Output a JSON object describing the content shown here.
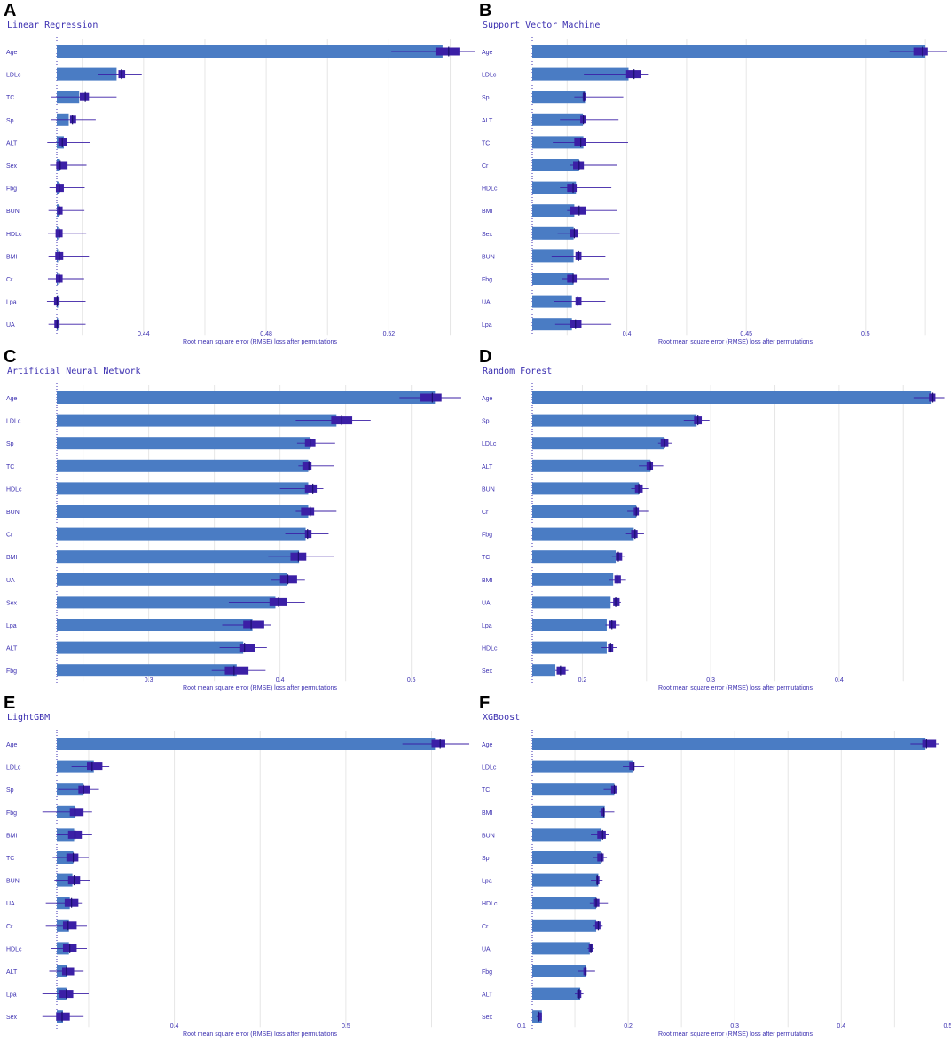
{
  "colors": {
    "bar": "#4a7cc4",
    "box": "#3b1fa6",
    "whisker": "#3b1fa6",
    "grid": "#e6e6e6",
    "baseline": "#3b2fb0"
  },
  "chart_data": [
    {
      "letter": "A",
      "title": "Linear Regression",
      "type": "bar",
      "xlabel": "Root mean square error (RMSE) loss after permutations",
      "baseline": 0.4117,
      "xlim": [
        0.4117,
        0.5465
      ],
      "ticks": [
        0.44,
        0.48,
        0.52
      ],
      "categories": [
        "Age",
        "LDLc",
        "TC",
        "Sp",
        "ALT",
        "Sex",
        "Fbg",
        "BUN",
        "HDLc",
        "BMI",
        "Cr",
        "Lpa",
        "UA"
      ],
      "values": [
        0.5375,
        0.4312,
        0.419,
        0.4156,
        0.414,
        0.4127,
        0.4124,
        0.4123,
        0.4122,
        0.4121,
        0.412,
        0.4119,
        0.4118
      ],
      "box_low": [
        0.5352,
        0.4318,
        0.4192,
        0.416,
        0.4122,
        0.4115,
        0.4114,
        0.4118,
        0.4113,
        0.4112,
        0.4114,
        0.4108,
        0.4109
      ],
      "box_high": [
        0.543,
        0.434,
        0.4222,
        0.418,
        0.415,
        0.4152,
        0.414,
        0.4136,
        0.4136,
        0.4138,
        0.4136,
        0.4126,
        0.4126
      ],
      "median": [
        0.5395,
        0.4328,
        0.421,
        0.4168,
        0.4135,
        0.4128,
        0.4125,
        0.4125,
        0.4125,
        0.4125,
        0.4125,
        0.4118,
        0.4118
      ],
      "wlo": [
        0.5208,
        0.4252,
        0.4097,
        0.4097,
        0.4086,
        0.4095,
        0.4093,
        0.409,
        0.4088,
        0.409,
        0.4088,
        0.4085,
        0.409
      ],
      "whi": [
        0.5494,
        0.4394,
        0.4312,
        0.4244,
        0.4224,
        0.4214,
        0.4208,
        0.4207,
        0.4213,
        0.4222,
        0.4206,
        0.4211,
        0.4211
      ]
    },
    {
      "letter": "B",
      "title": "Support Vector Machine",
      "type": "bar",
      "xlabel": "Root mean square error (RMSE) loss after permutations",
      "baseline": 0.3604,
      "xlim": [
        0.3604,
        0.5335
      ],
      "ticks": [
        0.4,
        0.45,
        0.5
      ],
      "categories": [
        "Age",
        "LDLc",
        "Sp",
        "ALT",
        "TC",
        "Cr",
        "HDLc",
        "BMI",
        "Sex",
        "BUN",
        "Fbg",
        "UA",
        "Lpa"
      ],
      "values": [
        0.525,
        0.4007,
        0.3825,
        0.3816,
        0.3818,
        0.38,
        0.3787,
        0.378,
        0.3777,
        0.3777,
        0.3777,
        0.377,
        0.377
      ],
      "box_low": [
        0.52,
        0.3997,
        0.3815,
        0.3805,
        0.378,
        0.3775,
        0.375,
        0.376,
        0.376,
        0.3785,
        0.375,
        0.3785,
        0.376
      ],
      "box_high": [
        0.526,
        0.406,
        0.383,
        0.383,
        0.383,
        0.382,
        0.379,
        0.383,
        0.3795,
        0.381,
        0.379,
        0.381,
        0.381
      ],
      "median": [
        0.5238,
        0.403,
        0.382,
        0.3818,
        0.3807,
        0.38,
        0.3775,
        0.38,
        0.378,
        0.3798,
        0.3775,
        0.3795,
        0.3785
      ],
      "wlo": [
        0.51,
        0.382,
        0.378,
        0.372,
        0.369,
        0.3762,
        0.372,
        0.375,
        0.371,
        0.3685,
        0.373,
        0.3695,
        0.37
      ],
      "whi": [
        0.534,
        0.4092,
        0.3985,
        0.3965,
        0.4005,
        0.396,
        0.3935,
        0.396,
        0.397,
        0.391,
        0.3925,
        0.391,
        0.3935
      ]
    },
    {
      "letter": "C",
      "title": "Artificial Neural Network",
      "type": "bar",
      "xlabel": "Root mean square error (RMSE) loss after permutations",
      "baseline": 0.23,
      "xlim": [
        0.23,
        0.5448
      ],
      "ticks": [
        0.3,
        0.4,
        0.5
      ],
      "categories": [
        "Age",
        "LDLc",
        "Sp",
        "TC",
        "HDLc",
        "BUN",
        "Cr",
        "BMI",
        "UA",
        "Sex",
        "Lpa",
        "ALT",
        "Fbg"
      ],
      "values": [
        0.518,
        0.443,
        0.423,
        0.4215,
        0.4215,
        0.4215,
        0.4195,
        0.4145,
        0.4055,
        0.3965,
        0.379,
        0.372,
        0.367
      ],
      "box_low": [
        0.507,
        0.439,
        0.419,
        0.417,
        0.419,
        0.416,
        0.419,
        0.408,
        0.4,
        0.392,
        0.372,
        0.369,
        0.358
      ],
      "box_high": [
        0.523,
        0.455,
        0.427,
        0.424,
        0.428,
        0.426,
        0.424,
        0.42,
        0.413,
        0.405,
        0.388,
        0.381,
        0.376
      ],
      "median": [
        0.516,
        0.447,
        0.423,
        0.422,
        0.425,
        0.423,
        0.421,
        0.414,
        0.406,
        0.399,
        0.378,
        0.373,
        0.365
      ],
      "wlo": [
        0.491,
        0.412,
        0.413,
        0.414,
        0.4,
        0.412,
        0.404,
        0.391,
        0.393,
        0.361,
        0.356,
        0.354,
        0.348
      ],
      "whi": [
        0.538,
        0.469,
        0.442,
        0.441,
        0.433,
        0.443,
        0.437,
        0.441,
        0.419,
        0.419,
        0.393,
        0.39,
        0.389
      ]
    },
    {
      "letter": "D",
      "title": "Random Forest",
      "type": "bar",
      "xlabel": "Root mean square error (RMSE) loss after permutations",
      "baseline": 0.161,
      "xlim": [
        0.161,
        0.483
      ],
      "ticks": [
        0.2,
        0.3,
        0.4
      ],
      "categories": [
        "Age",
        "Sp",
        "LDLc",
        "ALT",
        "BUN",
        "Cr",
        "Fbg",
        "TC",
        "BMI",
        "UA",
        "Lpa",
        "HDLc",
        "Sex"
      ],
      "values": [
        0.472,
        0.289,
        0.264,
        0.253,
        0.244,
        0.242,
        0.24,
        0.226,
        0.224,
        0.222,
        0.219,
        0.219,
        0.179
      ],
      "box_low": [
        0.47,
        0.287,
        0.261,
        0.25,
        0.241,
        0.24,
        0.238,
        0.226,
        0.225,
        0.224,
        0.221,
        0.22,
        0.18
      ],
      "box_high": [
        0.475,
        0.293,
        0.267,
        0.255,
        0.247,
        0.244,
        0.243,
        0.231,
        0.23,
        0.229,
        0.226,
        0.224,
        0.187
      ],
      "median": [
        0.473,
        0.29,
        0.264,
        0.253,
        0.244,
        0.242,
        0.241,
        0.228,
        0.227,
        0.226,
        0.223,
        0.222,
        0.183
      ],
      "wlo": [
        0.458,
        0.279,
        0.259,
        0.244,
        0.238,
        0.235,
        0.234,
        0.223,
        0.221,
        0.222,
        0.218,
        0.215,
        0.179
      ],
      "whi": [
        0.482,
        0.299,
        0.27,
        0.263,
        0.252,
        0.252,
        0.248,
        0.233,
        0.234,
        0.23,
        0.229,
        0.227,
        0.189
      ]
    },
    {
      "letter": "E",
      "title": "LightGBM",
      "type": "bar",
      "xlabel": "Root mean square error (RMSE) loss after permutations",
      "baseline": 0.3314,
      "xlim": [
        0.3314,
        0.5725
      ],
      "ticks": [
        0.4,
        0.5
      ],
      "categories": [
        "Age",
        "LDLc",
        "Sp",
        "Fbg",
        "BMI",
        "TC",
        "BUN",
        "UA",
        "Cr",
        "HDLc",
        "ALT",
        "Lpa",
        "Sex"
      ],
      "values": [
        0.552,
        0.353,
        0.347,
        0.342,
        0.3415,
        0.341,
        0.3405,
        0.339,
        0.3385,
        0.3385,
        0.3375,
        0.337,
        0.335
      ],
      "box_low": [
        0.55,
        0.349,
        0.344,
        0.339,
        0.338,
        0.337,
        0.338,
        0.336,
        0.335,
        0.335,
        0.3345,
        0.333,
        0.331
      ],
      "box_high": [
        0.558,
        0.358,
        0.351,
        0.347,
        0.346,
        0.344,
        0.345,
        0.344,
        0.343,
        0.343,
        0.3415,
        0.341,
        0.339
      ],
      "median": [
        0.555,
        0.352,
        0.347,
        0.342,
        0.342,
        0.341,
        0.3415,
        0.34,
        0.338,
        0.339,
        0.337,
        0.337,
        0.3345
      ],
      "wlo": [
        0.533,
        0.34,
        0.332,
        0.323,
        0.331,
        0.329,
        0.33,
        0.325,
        0.325,
        0.328,
        0.327,
        0.323,
        0.323
      ],
      "whi": [
        0.572,
        0.362,
        0.356,
        0.352,
        0.352,
        0.35,
        0.351,
        0.346,
        0.349,
        0.349,
        0.347,
        0.35,
        0.347
      ]
    },
    {
      "letter": "F",
      "title": "XGBoost",
      "type": "bar",
      "xlabel": "Root mean square error (RMSE) loss after permutations",
      "baseline": 0.11,
      "xlim": [
        0.11,
        0.498
      ],
      "ticks": [
        0.1,
        0.2,
        0.3,
        0.4,
        0.5
      ],
      "categories": [
        "Age",
        "LDLc",
        "TC",
        "BMI",
        "BUN",
        "Sp",
        "Lpa",
        "HDLc",
        "Cr",
        "UA",
        "Fbg",
        "ALT",
        "Sex"
      ],
      "values": [
        0.479,
        0.204,
        0.187,
        0.178,
        0.175,
        0.174,
        0.172,
        0.17,
        0.17,
        0.164,
        0.16,
        0.155,
        0.119
      ],
      "box_low": [
        0.476,
        0.201,
        0.184,
        0.175,
        0.171,
        0.171,
        0.17,
        0.168,
        0.169,
        0.163,
        0.158,
        0.152,
        0.115
      ],
      "box_high": [
        0.489,
        0.206,
        0.189,
        0.178,
        0.179,
        0.177,
        0.173,
        0.173,
        0.174,
        0.167,
        0.161,
        0.156,
        0.119
      ],
      "median": [
        0.48,
        0.205,
        0.187,
        0.177,
        0.176,
        0.175,
        0.171,
        0.17,
        0.172,
        0.165,
        0.16,
        0.154,
        0.116
      ],
      "wlo": [
        0.465,
        0.195,
        0.177,
        0.173,
        0.165,
        0.167,
        0.165,
        0.164,
        0.167,
        0.162,
        0.153,
        0.15,
        0.114
      ],
      "whi": [
        0.492,
        0.215,
        0.19,
        0.187,
        0.182,
        0.18,
        0.176,
        0.181,
        0.176,
        0.168,
        0.169,
        0.158,
        0.119
      ]
    }
  ]
}
